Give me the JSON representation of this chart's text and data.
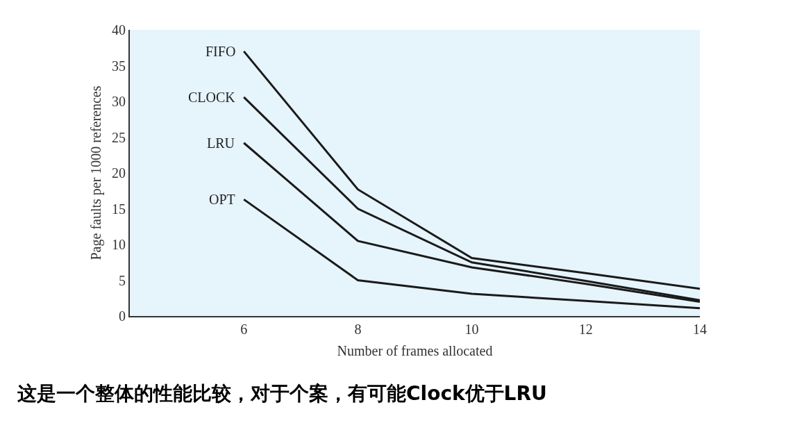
{
  "chart_data": {
    "type": "line",
    "xlabel": "Number of frames allocated",
    "ylabel": "Page faults per 1000 references",
    "x": [
      6,
      8,
      10,
      12,
      14
    ],
    "series": [
      {
        "name": "FIFO",
        "color": "#1a1a1a",
        "values": [
          37,
          17.7,
          8.1,
          6,
          3.8
        ]
      },
      {
        "name": "CLOCK",
        "color": "#1a1a1a",
        "values": [
          30.6,
          15,
          7.5,
          4.9,
          2.2
        ]
      },
      {
        "name": "LRU",
        "color": "#1a1a1a",
        "values": [
          24.2,
          10.5,
          6.8,
          4.5,
          2
        ]
      },
      {
        "name": "OPT",
        "color": "#1a1a1a",
        "values": [
          16.3,
          5,
          3.1,
          2.1,
          1.1
        ]
      }
    ],
    "xlim": [
      4,
      14
    ],
    "xticks": [
      6,
      8,
      10,
      12,
      14
    ],
    "ylim": [
      0,
      40
    ],
    "yticks": [
      0,
      5,
      10,
      15,
      20,
      25,
      30,
      35,
      40
    ],
    "grid": false,
    "legend": false,
    "marker": "none",
    "line_style": "solid",
    "annotations": [
      "这是一个整体的性能比较，对于个案，有可能Clock优于LRU"
    ]
  }
}
